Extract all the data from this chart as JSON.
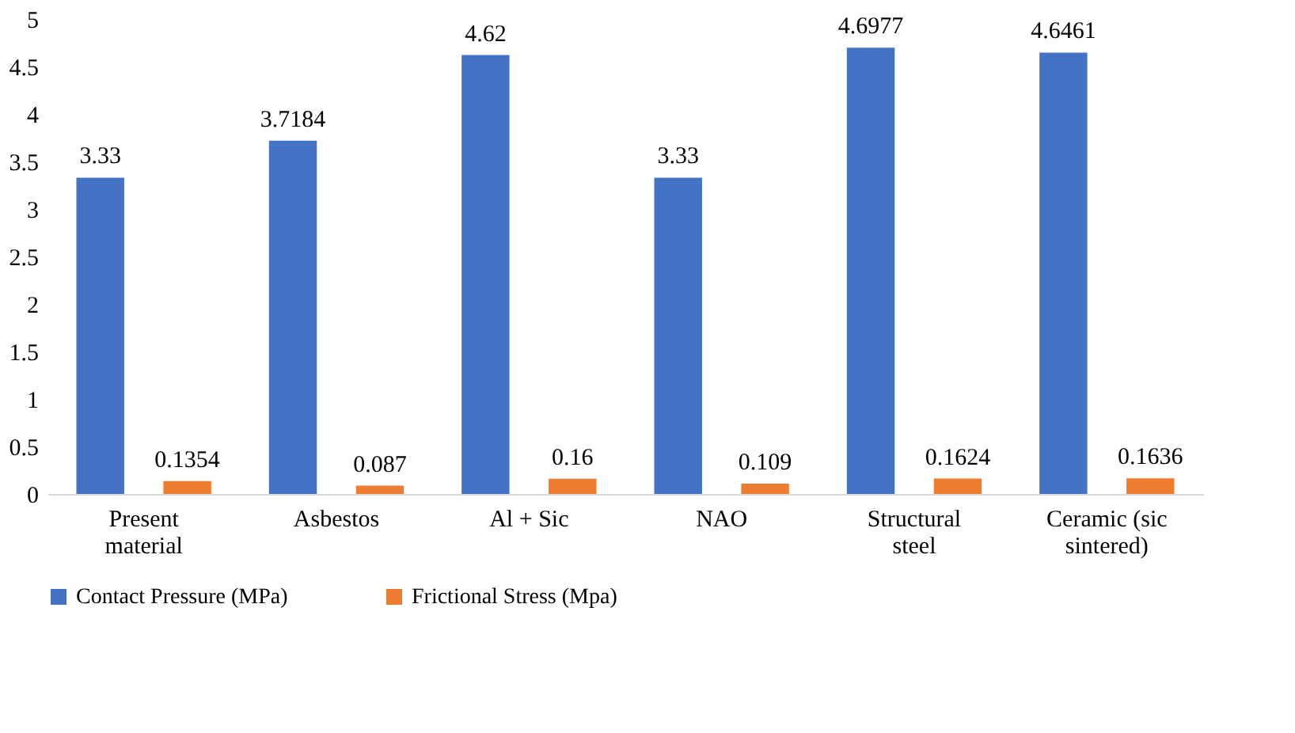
{
  "chart_data": {
    "type": "bar",
    "categories": [
      "Present material",
      "Asbestos",
      "Al + Sic",
      "NAO",
      "Structural steel",
      "Ceramic (sic sintered)"
    ],
    "series": [
      {
        "name": "Contact Pressure (MPa)",
        "color": "#4472c4",
        "values": [
          3.33,
          3.7184,
          4.62,
          3.33,
          4.6977,
          4.6461
        ]
      },
      {
        "name": "Frictional Stress (Mpa)",
        "color": "#ed7d31",
        "values": [
          0.1354,
          0.087,
          0.16,
          0.109,
          0.1624,
          0.1636
        ]
      }
    ],
    "ylim": [
      0,
      5
    ],
    "yticks": [
      0,
      0.5,
      1,
      1.5,
      2,
      2.5,
      3,
      3.5,
      4,
      4.5,
      5
    ],
    "grid": false,
    "legend": "bottom",
    "data_labels": true
  }
}
